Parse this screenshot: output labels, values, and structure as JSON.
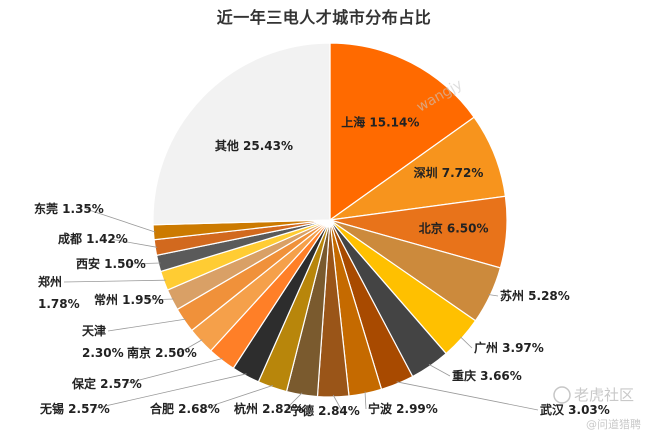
{
  "chart_data": {
    "type": "pie",
    "title": "近一年三电人才城市分布占比",
    "slices": [
      {
        "label": "上海",
        "value": 15.14,
        "text": "15.14%",
        "color": "#ff6a00"
      },
      {
        "label": "深圳",
        "value": 7.72,
        "text": "7.72%",
        "color": "#f7941d"
      },
      {
        "label": "北京",
        "value": 6.5,
        "text": "6.50%",
        "color": "#e8731a"
      },
      {
        "label": "苏州",
        "value": 5.28,
        "text": "5.28%",
        "color": "#cc8a3c"
      },
      {
        "label": "广州",
        "value": 3.97,
        "text": "3.97%",
        "color": "#ffc000"
      },
      {
        "label": "重庆",
        "value": 3.66,
        "text": "3.66%",
        "color": "#444444"
      },
      {
        "label": "武汉",
        "value": 3.03,
        "text": "3.03%",
        "color": "#a84a00"
      },
      {
        "label": "宁波",
        "value": 2.99,
        "text": "2.99%",
        "color": "#c56a00"
      },
      {
        "label": "宁德",
        "value": 2.84,
        "text": "2.84%",
        "color": "#9a5518"
      },
      {
        "label": "杭州",
        "value": 2.82,
        "text": "2.82%",
        "color": "#7a5a2e"
      },
      {
        "label": "合肥",
        "value": 2.68,
        "text": "2.68%",
        "color": "#b8860b"
      },
      {
        "label": "无锡",
        "value": 2.57,
        "text": "2.57%",
        "color": "#2d2d2d"
      },
      {
        "label": "保定",
        "value": 2.57,
        "text": "2.57%",
        "color": "#ff7f27"
      },
      {
        "label": "南京",
        "value": 2.5,
        "text": "2.50%",
        "color": "#f5a04a"
      },
      {
        "label": "天津",
        "value": 2.3,
        "text": "2.30%",
        "color": "#f0913a"
      },
      {
        "label": "常州",
        "value": 1.95,
        "text": "1.95%",
        "color": "#d9a066"
      },
      {
        "label": "郑州",
        "value": 1.78,
        "text": "1.78%",
        "color": "#ffcc33"
      },
      {
        "label": "西安",
        "value": 1.5,
        "text": "1.50%",
        "color": "#5a5a5a"
      },
      {
        "label": "成都",
        "value": 1.42,
        "text": "1.42%",
        "color": "#d2691e"
      },
      {
        "label": "东莞",
        "value": 1.35,
        "text": "1.35%",
        "color": "#cc7a00"
      },
      {
        "label": "其他",
        "value": 25.43,
        "text": "25.43%",
        "color": "#f2f2f2"
      }
    ],
    "legend": "none"
  },
  "watermark": {
    "text": "wangjy",
    "brand": "老虎社区",
    "sub": "@问道猎聘"
  }
}
